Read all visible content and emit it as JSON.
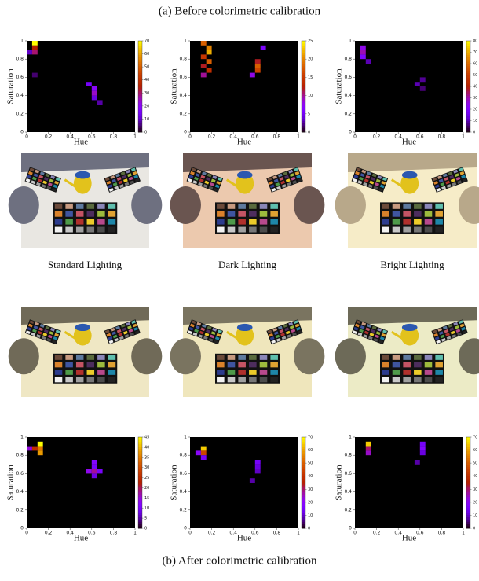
{
  "captions": {
    "top": "(a) Before colorimetric calibration",
    "bottom": "(b) After colorimetric calibration"
  },
  "lighting_labels": [
    "Standard Lighting",
    "Dark Lighting",
    "Bright Lighting"
  ],
  "chart_data": [
    {
      "type": "heatmap",
      "xlabel": "Hue",
      "ylabel": "Saturation",
      "xlim": [
        0,
        1
      ],
      "ylim": [
        0,
        1
      ],
      "xticks": [
        0,
        0.2,
        0.4,
        0.6,
        0.8,
        1
      ],
      "yticks": [
        0,
        0.2,
        0.4,
        0.6,
        0.8,
        1
      ],
      "colormap": "gnuplot",
      "colorbar": {
        "lim": [
          0,
          70
        ],
        "ticks": [
          0,
          10,
          20,
          30,
          40,
          50,
          60,
          70
        ]
      },
      "cells": [
        {
          "hue": [
            0.05,
            0.1
          ],
          "saturation": [
            0.95,
            1
          ],
          "value": 70
        },
        {
          "hue": [
            0.05,
            0.1
          ],
          "saturation": [
            0.9,
            0.95
          ],
          "value": 35
        },
        {
          "hue": [
            0.05,
            0.1
          ],
          "saturation": [
            0.85,
            0.9
          ],
          "value": 30
        },
        {
          "hue": [
            0,
            0.05
          ],
          "saturation": [
            0.85,
            0.9
          ],
          "value": 10
        },
        {
          "hue": [
            0.55,
            0.6
          ],
          "saturation": [
            0.5,
            0.55
          ],
          "value": 15
        },
        {
          "hue": [
            0.6,
            0.65
          ],
          "saturation": [
            0.45,
            0.5
          ],
          "value": 20
        },
        {
          "hue": [
            0.6,
            0.65
          ],
          "saturation": [
            0.4,
            0.45
          ],
          "value": 25
        },
        {
          "hue": [
            0.6,
            0.65
          ],
          "saturation": [
            0.35,
            0.4
          ],
          "value": 12
        },
        {
          "hue": [
            0.65,
            0.7
          ],
          "saturation": [
            0.3,
            0.35
          ],
          "value": 8
        },
        {
          "hue": [
            0.05,
            0.1
          ],
          "saturation": [
            0.6,
            0.65
          ],
          "value": 5
        }
      ]
    },
    {
      "type": "heatmap",
      "xlabel": "Hue",
      "ylabel": "Saturation",
      "xlim": [
        0,
        1
      ],
      "ylim": [
        0,
        1
      ],
      "xticks": [
        0,
        0.2,
        0.4,
        0.6,
        0.8,
        1
      ],
      "yticks": [
        0,
        0.2,
        0.4,
        0.6,
        0.8,
        1
      ],
      "colormap": "gnuplot",
      "colorbar": {
        "lim": [
          0,
          25
        ],
        "ticks": [
          0,
          5,
          10,
          15,
          20,
          25
        ]
      },
      "cells": [
        {
          "hue": [
            0.1,
            0.15
          ],
          "saturation": [
            0.95,
            1
          ],
          "value": 18
        },
        {
          "hue": [
            0.15,
            0.2
          ],
          "saturation": [
            0.9,
            0.95
          ],
          "value": 20
        },
        {
          "hue": [
            0.15,
            0.2
          ],
          "saturation": [
            0.85,
            0.9
          ],
          "value": 22
        },
        {
          "hue": [
            0.1,
            0.15
          ],
          "saturation": [
            0.8,
            0.85
          ],
          "value": 15
        },
        {
          "hue": [
            0.15,
            0.2
          ],
          "saturation": [
            0.75,
            0.8
          ],
          "value": 18
        },
        {
          "hue": [
            0.1,
            0.15
          ],
          "saturation": [
            0.7,
            0.75
          ],
          "value": 12
        },
        {
          "hue": [
            0.15,
            0.2
          ],
          "saturation": [
            0.65,
            0.7
          ],
          "value": 14
        },
        {
          "hue": [
            0.1,
            0.15
          ],
          "saturation": [
            0.6,
            0.65
          ],
          "value": 10
        },
        {
          "hue": [
            0.6,
            0.65
          ],
          "saturation": [
            0.75,
            0.8
          ],
          "value": 12
        },
        {
          "hue": [
            0.6,
            0.65
          ],
          "saturation": [
            0.7,
            0.75
          ],
          "value": 18
        },
        {
          "hue": [
            0.6,
            0.65
          ],
          "saturation": [
            0.65,
            0.7
          ],
          "value": 16
        },
        {
          "hue": [
            0.55,
            0.6
          ],
          "saturation": [
            0.6,
            0.65
          ],
          "value": 8
        },
        {
          "hue": [
            0.65,
            0.7
          ],
          "saturation": [
            0.9,
            0.95
          ],
          "value": 6
        }
      ]
    },
    {
      "type": "heatmap",
      "xlabel": "Hue",
      "ylabel": "Saturation",
      "xlim": [
        0,
        1
      ],
      "ylim": [
        0,
        1
      ],
      "xticks": [
        0,
        0.2,
        0.4,
        0.6,
        0.8,
        1
      ],
      "yticks": [
        0,
        0.2,
        0.4,
        0.6,
        0.8,
        1
      ],
      "colormap": "gnuplot",
      "colorbar": {
        "lim": [
          0,
          80
        ],
        "ticks": [
          0,
          10,
          20,
          30,
          40,
          50,
          60,
          70,
          80
        ]
      },
      "cells": [
        {
          "hue": [
            0.05,
            0.1
          ],
          "saturation": [
            0.9,
            0.95
          ],
          "value": 25
        },
        {
          "hue": [
            0.05,
            0.1
          ],
          "saturation": [
            0.85,
            0.9
          ],
          "value": 30
        },
        {
          "hue": [
            0.05,
            0.1
          ],
          "saturation": [
            0.8,
            0.85
          ],
          "value": 20
        },
        {
          "hue": [
            0.1,
            0.15
          ],
          "saturation": [
            0.75,
            0.8
          ],
          "value": 10
        },
        {
          "hue": [
            0.6,
            0.65
          ],
          "saturation": [
            0.55,
            0.6
          ],
          "value": 8
        },
        {
          "hue": [
            0.55,
            0.6
          ],
          "saturation": [
            0.5,
            0.55
          ],
          "value": 10
        },
        {
          "hue": [
            0.6,
            0.65
          ],
          "saturation": [
            0.45,
            0.5
          ],
          "value": 6
        }
      ]
    },
    {
      "type": "heatmap",
      "xlabel": "Hue",
      "ylabel": "Saturation",
      "xlim": [
        0,
        1
      ],
      "ylim": [
        0,
        1
      ],
      "xticks": [
        0,
        0.2,
        0.4,
        0.6,
        0.8,
        1
      ],
      "yticks": [
        0,
        0.2,
        0.4,
        0.6,
        0.8,
        1
      ],
      "colormap": "gnuplot",
      "colorbar": {
        "lim": [
          0,
          45
        ],
        "ticks": [
          0,
          5,
          10,
          15,
          20,
          25,
          30,
          35,
          40,
          45
        ]
      },
      "cells": [
        {
          "hue": [
            0.1,
            0.15
          ],
          "saturation": [
            0.9,
            0.95
          ],
          "value": 45
        },
        {
          "hue": [
            0.05,
            0.1
          ],
          "saturation": [
            0.85,
            0.9
          ],
          "value": 25
        },
        {
          "hue": [
            0.1,
            0.15
          ],
          "saturation": [
            0.85,
            0.9
          ],
          "value": 35
        },
        {
          "hue": [
            0.1,
            0.15
          ],
          "saturation": [
            0.8,
            0.85
          ],
          "value": 38
        },
        {
          "hue": [
            0,
            0.05
          ],
          "saturation": [
            0.85,
            0.9
          ],
          "value": 15
        },
        {
          "hue": [
            0.6,
            0.65
          ],
          "saturation": [
            0.7,
            0.75
          ],
          "value": 12
        },
        {
          "hue": [
            0.6,
            0.65
          ],
          "saturation": [
            0.65,
            0.7
          ],
          "value": 10
        },
        {
          "hue": [
            0.55,
            0.6
          ],
          "saturation": [
            0.6,
            0.65
          ],
          "value": 14
        },
        {
          "hue": [
            0.6,
            0.65
          ],
          "saturation": [
            0.6,
            0.65
          ],
          "value": 18
        },
        {
          "hue": [
            0.65,
            0.7
          ],
          "saturation": [
            0.6,
            0.65
          ],
          "value": 10
        },
        {
          "hue": [
            0.6,
            0.65
          ],
          "saturation": [
            0.55,
            0.6
          ],
          "value": 8
        }
      ]
    },
    {
      "type": "heatmap",
      "xlabel": "Hue",
      "ylabel": "Saturation",
      "xlim": [
        0,
        1
      ],
      "ylim": [
        0,
        1
      ],
      "xticks": [
        0,
        0.2,
        0.4,
        0.6,
        0.8,
        1
      ],
      "yticks": [
        0,
        0.2,
        0.4,
        0.6,
        0.8,
        1
      ],
      "colormap": "gnuplot",
      "colorbar": {
        "lim": [
          0,
          70
        ],
        "ticks": [
          0,
          10,
          20,
          30,
          40,
          50,
          60,
          70
        ]
      },
      "cells": [
        {
          "hue": [
            0.1,
            0.15
          ],
          "saturation": [
            0.85,
            0.9
          ],
          "value": 65
        },
        {
          "hue": [
            0.1,
            0.15
          ],
          "saturation": [
            0.8,
            0.85
          ],
          "value": 45
        },
        {
          "hue": [
            0.05,
            0.1
          ],
          "saturation": [
            0.8,
            0.85
          ],
          "value": 20
        },
        {
          "hue": [
            0.1,
            0.15
          ],
          "saturation": [
            0.75,
            0.8
          ],
          "value": 15
        },
        {
          "hue": [
            0.6,
            0.65
          ],
          "saturation": [
            0.7,
            0.75
          ],
          "value": 15
        },
        {
          "hue": [
            0.6,
            0.65
          ],
          "saturation": [
            0.65,
            0.7
          ],
          "value": 12
        },
        {
          "hue": [
            0.6,
            0.65
          ],
          "saturation": [
            0.6,
            0.65
          ],
          "value": 10
        },
        {
          "hue": [
            0.55,
            0.6
          ],
          "saturation": [
            0.5,
            0.55
          ],
          "value": 8
        }
      ]
    },
    {
      "type": "heatmap",
      "xlabel": "Hue",
      "ylabel": "Saturation",
      "xlim": [
        0,
        1
      ],
      "ylim": [
        0,
        1
      ],
      "xticks": [
        0,
        0.2,
        0.4,
        0.6,
        0.8,
        1
      ],
      "yticks": [
        0,
        0.2,
        0.4,
        0.6,
        0.8,
        1
      ],
      "colormap": "gnuplot",
      "colorbar": {
        "lim": [
          0,
          70
        ],
        "ticks": [
          0,
          10,
          20,
          30,
          40,
          50,
          60,
          70
        ]
      },
      "cells": [
        {
          "hue": [
            0.1,
            0.15
          ],
          "saturation": [
            0.9,
            0.95
          ],
          "value": 65
        },
        {
          "hue": [
            0.1,
            0.15
          ],
          "saturation": [
            0.85,
            0.9
          ],
          "value": 30
        },
        {
          "hue": [
            0.1,
            0.15
          ],
          "saturation": [
            0.8,
            0.85
          ],
          "value": 25
        },
        {
          "hue": [
            0.6,
            0.65
          ],
          "saturation": [
            0.9,
            0.95
          ],
          "value": 15
        },
        {
          "hue": [
            0.6,
            0.65
          ],
          "saturation": [
            0.85,
            0.9
          ],
          "value": 18
        },
        {
          "hue": [
            0.6,
            0.65
          ],
          "saturation": [
            0.8,
            0.85
          ],
          "value": 12
        },
        {
          "hue": [
            0.55,
            0.6
          ],
          "saturation": [
            0.7,
            0.75
          ],
          "value": 8
        }
      ]
    }
  ]
}
